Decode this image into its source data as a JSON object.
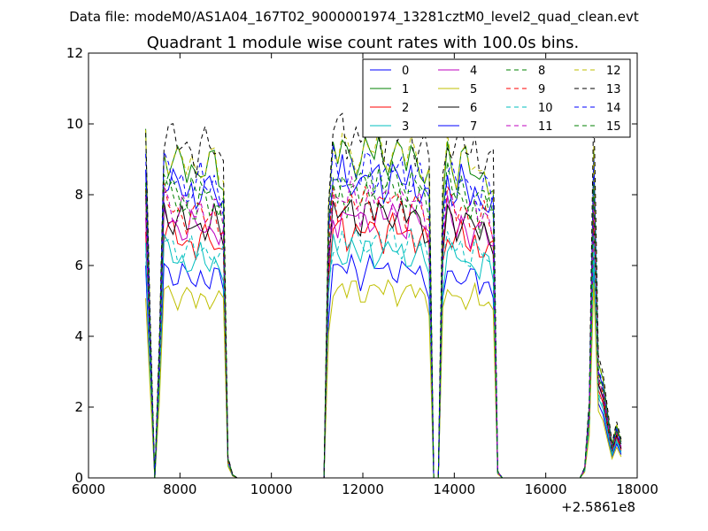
{
  "chart_data": {
    "type": "line",
    "suptitle": "Data file: modeM0/AS1A04_167T02_9000001974_13281cztM0_level2_quad_clean.evt",
    "title": "Quadrant 1 module wise count rates with 100.0s bins.",
    "xlabel": "",
    "ylabel": "",
    "x_offset_label": "+2.5861e8",
    "xlim": [
      6000,
      18000
    ],
    "ylim": [
      0,
      12
    ],
    "xticks": [
      6000,
      8000,
      10000,
      12000,
      14000,
      16000,
      18000
    ],
    "yticks": [
      0,
      2,
      4,
      6,
      8,
      10,
      12
    ],
    "grid": false,
    "legend_position": "top-right",
    "legend_columns": 4,
    "x": [
      7250,
      7350,
      7450,
      7550,
      7650,
      7750,
      7850,
      7950,
      8050,
      8150,
      8250,
      8350,
      8450,
      8550,
      8650,
      8750,
      8850,
      8950,
      9050,
      9150,
      9250,
      9350,
      9450,
      9550,
      9650,
      9750,
      9850,
      9950,
      10050,
      10150,
      10250,
      10350,
      10450,
      10550,
      10650,
      10750,
      10850,
      10950,
      11050,
      11150,
      11250,
      11350,
      11450,
      11550,
      11650,
      11750,
      11850,
      11950,
      12050,
      12150,
      12250,
      12350,
      12450,
      12550,
      12650,
      12750,
      12850,
      12950,
      13050,
      13150,
      13250,
      13350,
      13450,
      13550,
      13650,
      13750,
      13850,
      13950,
      14050,
      14150,
      14250,
      14350,
      14450,
      14550,
      14650,
      14750,
      14850,
      14950,
      15050,
      15150,
      15250,
      15350,
      15450,
      15550,
      15650,
      15750,
      15850,
      15950,
      16050,
      16150,
      16250,
      16350,
      16450,
      16550,
      16650,
      16750,
      16850,
      16950,
      17050,
      17150,
      17250,
      17350,
      17450,
      17550,
      17650
    ],
    "envelope": [
      1.0,
      0.45,
      0.0,
      0.4,
      1.0,
      0.98,
      0.96,
      0.94,
      0.95,
      0.93,
      0.95,
      0.92,
      0.96,
      0.94,
      0.93,
      0.95,
      0.92,
      0.9,
      0.06,
      0.01,
      0,
      0,
      0,
      0,
      0,
      0,
      0,
      0,
      0,
      0,
      0,
      0,
      0,
      0,
      0,
      0,
      0,
      0,
      0,
      0,
      0.8,
      1.0,
      0.97,
      1.0,
      0.96,
      1.0,
      0.98,
      0.95,
      0.99,
      1.0,
      0.97,
      1.0,
      0.96,
      0.99,
      1.0,
      0.97,
      0.98,
      0.95,
      0.99,
      0.96,
      0.97,
      0.94,
      0.9,
      0,
      0,
      0.85,
      1.0,
      0.96,
      0.93,
      0.97,
      0.94,
      0.92,
      0.95,
      0.9,
      0.93,
      0.91,
      0.88,
      0.02,
      0,
      0,
      0,
      0,
      0,
      0,
      0,
      0,
      0,
      0,
      0,
      0,
      0,
      0,
      0,
      0,
      0,
      0,
      0.03,
      0.22,
      1.0,
      0.35,
      0.3,
      0.2,
      0.1,
      0.16,
      0.11
    ],
    "series": [
      {
        "name": "0",
        "color": "#0000ff",
        "dash": false,
        "level": 6.0
      },
      {
        "name": "1",
        "color": "#008000",
        "dash": false,
        "level": 9.3
      },
      {
        "name": "2",
        "color": "#ff0000",
        "dash": false,
        "level": 7.1
      },
      {
        "name": "3",
        "color": "#00bfbf",
        "dash": false,
        "level": 6.5
      },
      {
        "name": "4",
        "color": "#bf00bf",
        "dash": false,
        "level": 7.5
      },
      {
        "name": "5",
        "color": "#bfbf00",
        "dash": false,
        "level": 5.4
      },
      {
        "name": "6",
        "color": "#000000",
        "dash": false,
        "level": 7.6
      },
      {
        "name": "7",
        "color": "#0000ff",
        "dash": false,
        "level": 8.6
      },
      {
        "name": "8",
        "color": "#008000",
        "dash": true,
        "level": 8.2
      },
      {
        "name": "9",
        "color": "#ff0000",
        "dash": true,
        "level": 7.9
      },
      {
        "name": "10",
        "color": "#00bfbf",
        "dash": true,
        "level": 6.8
      },
      {
        "name": "11",
        "color": "#bf00bf",
        "dash": true,
        "level": 8.0
      },
      {
        "name": "12",
        "color": "#bfbf00",
        "dash": true,
        "level": 9.4
      },
      {
        "name": "13",
        "color": "#000000",
        "dash": true,
        "level": 9.9
      },
      {
        "name": "14",
        "color": "#0000ff",
        "dash": true,
        "level": 8.8
      },
      {
        "name": "15",
        "color": "#008000",
        "dash": true,
        "level": 8.5
      }
    ]
  }
}
